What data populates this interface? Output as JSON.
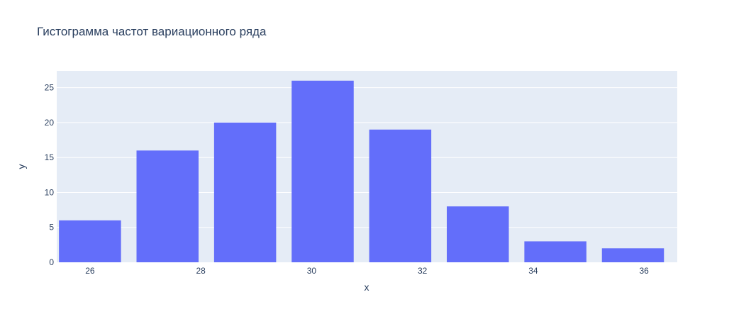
{
  "colors": {
    "plot_background": "#e5ecf6",
    "grid": "#ffffff",
    "bar": "#636efa",
    "text": "#2a3f5f"
  },
  "chart_data": {
    "type": "bar",
    "title": "Гистограмма частот вариационного ряда",
    "xlabel": "x",
    "ylabel": "y",
    "x": [
      26,
      27.4,
      28.8,
      30.2,
      31.6,
      33,
      34.4,
      35.8
    ],
    "values": [
      6,
      16,
      20,
      26,
      19,
      8,
      3,
      2
    ],
    "xlim": [
      25.4,
      36.6
    ],
    "ylim": [
      0,
      27.4
    ],
    "xticks": [
      26,
      28,
      30,
      32,
      34,
      36
    ],
    "xtick_labels": [
      "26",
      "28",
      "30",
      "32",
      "34",
      "36"
    ],
    "yticks": [
      0,
      5,
      10,
      15,
      20,
      25
    ],
    "ytick_labels": [
      "0",
      "5",
      "10",
      "15",
      "20",
      "25"
    ],
    "grid": true,
    "legend": "none"
  }
}
